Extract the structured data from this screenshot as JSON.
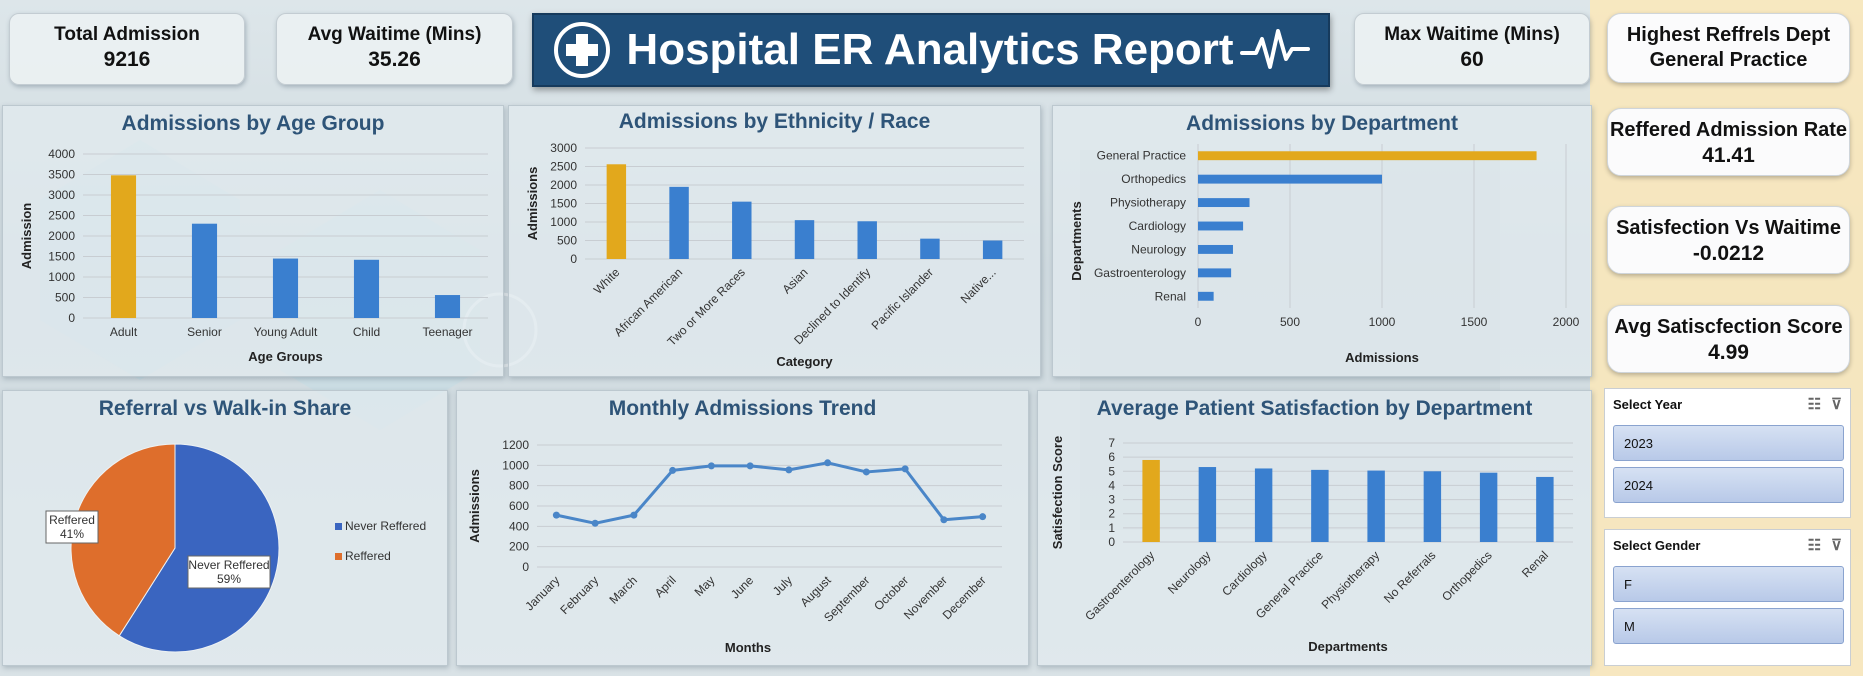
{
  "header": {
    "title": "Hospital ER Analytics Report"
  },
  "kpis": {
    "total_admission": {
      "label": "Total Admission",
      "value": "9216"
    },
    "avg_waitime": {
      "label": "Avg Waitime (Mins)",
      "value": "35.26"
    },
    "max_waitime": {
      "label": "Max Waitime (Mins)",
      "value": "60"
    }
  },
  "side": {
    "highest_referrals": {
      "label": "Highest Reffrels Dept",
      "value": "General Practice"
    },
    "referred_rate": {
      "label": "Reffered Admission Rate",
      "value": "41.41"
    },
    "satisfaction_vs_waitime": {
      "label": "Satisfection Vs Waitime",
      "value": "-0.0212"
    },
    "avg_satisfaction": {
      "label": "Avg Satiscfection Score",
      "value": "4.99"
    }
  },
  "slicers": {
    "year": {
      "title": "Select Year",
      "items": [
        "2023",
        "2024"
      ]
    },
    "gender": {
      "title": "Select Gender",
      "items": [
        "F",
        "M"
      ]
    }
  },
  "colors": {
    "highlight": "#e2a81c",
    "bar": "#3a7fcf",
    "line": "#4a86c8",
    "pie_never": "#3a65c0",
    "pie_referred": "#de6e2c"
  },
  "chart_data": [
    {
      "id": "age",
      "type": "bar",
      "title": "Admissions by Age Group",
      "xlabel": "Age Groups",
      "ylabel": "Admission",
      "categories": [
        "Adult",
        "Senior",
        "Young Adult",
        "Child",
        "Teenager"
      ],
      "values": [
        3480,
        2300,
        1450,
        1420,
        560
      ],
      "ylim": [
        0,
        4000
      ],
      "yticks": [
        0,
        500,
        1000,
        1500,
        2000,
        2500,
        3000,
        3500,
        4000
      ]
    },
    {
      "id": "ethnicity",
      "type": "bar",
      "title": "Admissions by Ethnicity / Race",
      "xlabel": "Category",
      "ylabel": "Admissions",
      "categories": [
        "White",
        "African American",
        "Two or More Races",
        "Asian",
        "Declined to Identify",
        "Pacific Islander",
        "Native..."
      ],
      "values": [
        2560,
        1950,
        1550,
        1050,
        1020,
        550,
        500
      ],
      "ylim": [
        0,
        3000
      ],
      "yticks": [
        0,
        500,
        1000,
        1500,
        2000,
        2500,
        3000
      ]
    },
    {
      "id": "department",
      "type": "bar",
      "title": "Admissions by Department",
      "xlabel": "Admissions",
      "ylabel": "Departments",
      "categories": [
        "General Practice",
        "Orthopedics",
        "Physiotherapy",
        "Cardiology",
        "Neurology",
        "Gastroenterology",
        "Renal"
      ],
      "values": [
        1840,
        1000,
        280,
        245,
        190,
        180,
        85
      ],
      "xlim": [
        0,
        2000
      ],
      "xticks": [
        0,
        500,
        1000,
        1500,
        2000
      ]
    },
    {
      "id": "referral",
      "type": "pie",
      "title": "Referral vs Walk-in Share",
      "labels": [
        "Never Reffered",
        "Reffered"
      ],
      "values": [
        59,
        41
      ],
      "display": [
        "59%",
        "41%"
      ],
      "legend_position": "right"
    },
    {
      "id": "monthly",
      "type": "line",
      "title": "Monthly Admissions Trend",
      "xlabel": "Months",
      "ylabel": "Admissions",
      "categories": [
        "January",
        "February",
        "March",
        "April",
        "May",
        "June",
        "July",
        "August",
        "September",
        "October",
        "November",
        "December"
      ],
      "values": [
        510,
        430,
        510,
        950,
        995,
        995,
        955,
        1025,
        935,
        965,
        465,
        495
      ],
      "ylim": [
        0,
        1200
      ],
      "yticks": [
        0,
        200,
        400,
        600,
        800,
        1000,
        1200
      ]
    },
    {
      "id": "satisfaction",
      "type": "bar",
      "title": "Average Patient Satisfaction by Department",
      "xlabel": "Departments",
      "ylabel": "Satisfection Score",
      "categories": [
        "Gastroenterology",
        "Neurology",
        "Cardiology",
        "General Practice",
        "Physiotherapy",
        "No Referrals",
        "Orthopedics",
        "Renal"
      ],
      "values": [
        5.8,
        5.3,
        5.2,
        5.1,
        5.05,
        5.0,
        4.9,
        4.6
      ],
      "ylim": [
        0,
        7
      ],
      "yticks": [
        0,
        1,
        2,
        3,
        4,
        5,
        6,
        7
      ]
    }
  ]
}
